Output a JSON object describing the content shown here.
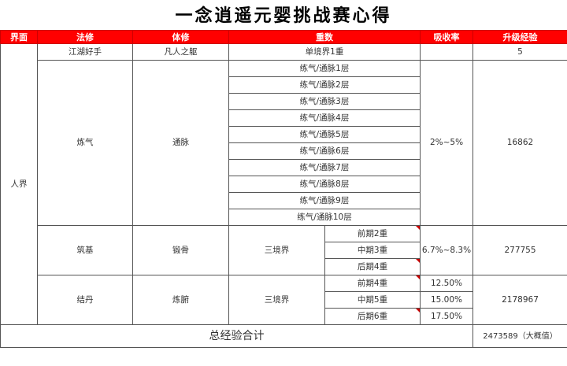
{
  "title": "一念逍遥元婴挑战赛心得",
  "headers": [
    "界面",
    "法修",
    "体修",
    "重数",
    "吸收率",
    "升级经验"
  ],
  "realm": "人界",
  "row_first": {
    "fa": "江湖好手",
    "ti": "凡人之躯",
    "level": "单境界1重",
    "exp": "5"
  },
  "lianqi": {
    "fa": "炼气",
    "ti": "通脉",
    "levels": [
      "练气/通脉1层",
      "练气/通脉2层",
      "练气/通脉3层",
      "练气/通脉4层",
      "练气/通脉5层",
      "练气/通脉6层",
      "练气/通脉7层",
      "练气/通脉8层",
      "练气/通脉9层",
      "练气/通脉10层"
    ],
    "rate": "2%~5%",
    "exp": "16862"
  },
  "zhuji": {
    "fa": "筑基",
    "ti": "锻骨",
    "stage": "三境界",
    "levels": [
      "前期2重",
      "中期3重",
      "后期4重"
    ],
    "rate": "6.7%~8.3%",
    "exp": "277755"
  },
  "jiedan": {
    "fa": "结丹",
    "ti": "炼腑",
    "stage": "三境界",
    "levels": [
      "前期4重",
      "中期5重",
      "后期6重"
    ],
    "rates": [
      "12.50%",
      "15.00%",
      "17.50%"
    ],
    "exp": "2178967"
  },
  "total": {
    "label": "总经验合计",
    "value": "2473589（大概值）"
  },
  "colors": {
    "header": "#ff0000",
    "comment_marker": "#cc0000"
  }
}
